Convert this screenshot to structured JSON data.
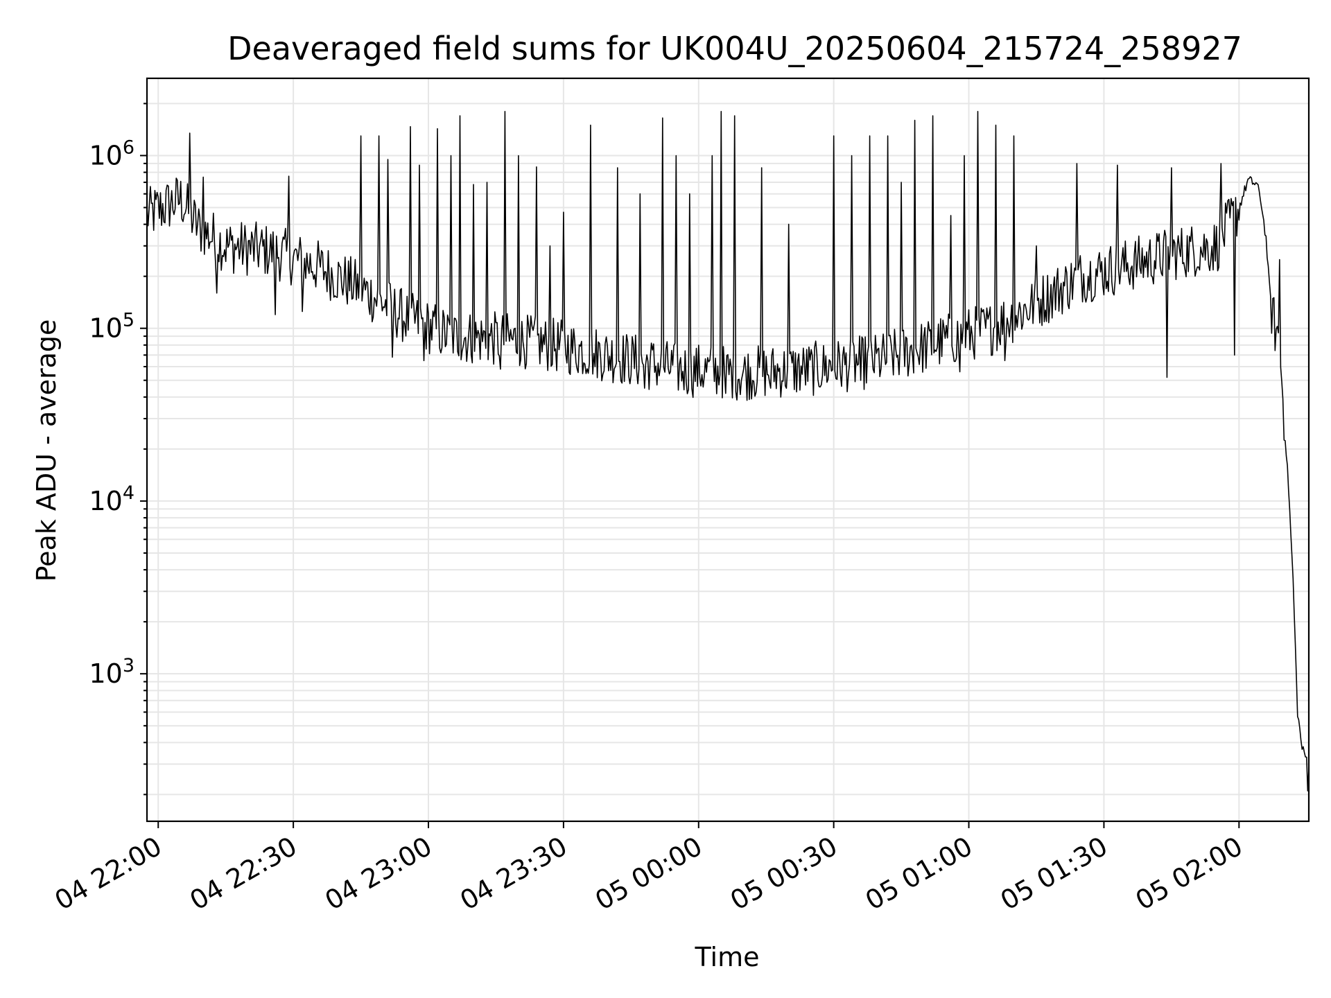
{
  "chart_data": {
    "type": "line",
    "title": "Deaveraged field sums for UK004U_20250604_215724_258927",
    "xlabel": "Time",
    "ylabel": "Peak ADU - average",
    "yscale": "log",
    "ylim": [
      140,
      2800000
    ],
    "xlim": [
      "2025-06-04 21:57:30",
      "2025-06-05 02:15:30"
    ],
    "grid": "major and minor",
    "x_ticks": [
      {
        "time": "2025-06-04 22:00",
        "label": "04 22:00"
      },
      {
        "time": "2025-06-04 22:30",
        "label": "04 22:30"
      },
      {
        "time": "2025-06-04 23:00",
        "label": "04 23:00"
      },
      {
        "time": "2025-06-04 23:30",
        "label": "04 23:30"
      },
      {
        "time": "2025-06-05 00:00",
        "label": "05 00:00"
      },
      {
        "time": "2025-06-05 00:30",
        "label": "05 00:30"
      },
      {
        "time": "2025-06-05 01:00",
        "label": "05 01:00"
      },
      {
        "time": "2025-06-05 01:30",
        "label": "05 01:30"
      },
      {
        "time": "2025-06-05 02:00",
        "label": "05 02:00"
      }
    ],
    "y_ticks": [
      {
        "value": 1000,
        "base": "10",
        "exp": "3"
      },
      {
        "value": 10000,
        "base": "10",
        "exp": "4"
      },
      {
        "value": 100000,
        "base": "10",
        "exp": "5"
      },
      {
        "value": 1000000,
        "base": "10",
        "exp": "6"
      }
    ],
    "series": [
      {
        "color": "#000000",
        "baseline": [
          [
            "2025-06-04 21:57:30",
            450000
          ],
          [
            "2025-06-04 22:05",
            560000
          ],
          [
            "2025-06-04 22:09",
            380000
          ],
          [
            "2025-06-04 22:15",
            300000
          ],
          [
            "2025-06-04 22:25",
            280000
          ],
          [
            "2025-06-04 22:35",
            230000
          ],
          [
            "2025-06-04 22:45",
            170000
          ],
          [
            "2025-06-04 22:55",
            115000
          ],
          [
            "2025-06-04 23:05",
            90000
          ],
          [
            "2025-06-04 23:20",
            85000
          ],
          [
            "2025-06-04 23:30",
            78000
          ],
          [
            "2025-06-04 23:40",
            70000
          ],
          [
            "2025-06-04 23:55",
            58000
          ],
          [
            "2025-06-05 00:10",
            55000
          ],
          [
            "2025-06-05 00:25",
            58000
          ],
          [
            "2025-06-05 00:40",
            65000
          ],
          [
            "2025-06-05 00:55",
            85000
          ],
          [
            "2025-06-05 01:05",
            100000
          ],
          [
            "2025-06-05 01:15",
            140000
          ],
          [
            "2025-06-05 01:25",
            200000
          ],
          [
            "2025-06-05 01:35",
            230000
          ],
          [
            "2025-06-05 01:45",
            270000
          ],
          [
            "2025-06-05 01:55",
            300000
          ],
          [
            "2025-06-05 02:00",
            500000
          ],
          [
            "2025-06-05 02:02",
            720000
          ],
          [
            "2025-06-05 02:04",
            680000
          ],
          [
            "2025-06-05 02:05",
            520000
          ],
          [
            "2025-06-05 02:06",
            330000
          ],
          [
            "2025-06-05 02:07",
            140000
          ],
          [
            "2025-06-05 02:08",
            100000
          ],
          [
            "2025-06-05 02:09",
            85000
          ],
          [
            "2025-06-05 02:10",
            30000
          ],
          [
            "2025-06-05 02:11",
            12000
          ],
          [
            "2025-06-05 02:12",
            3500
          ],
          [
            "2025-06-05 02:13",
            600
          ],
          [
            "2025-06-05 02:14",
            370
          ],
          [
            "2025-06-05 02:15:30",
            300
          ]
        ],
        "spikes": [
          [
            "2025-06-04 22:07",
            1350000
          ],
          [
            "2025-06-04 22:10",
            750000
          ],
          [
            "2025-06-04 22:29",
            760000
          ],
          [
            "2025-06-04 22:45",
            1300000
          ],
          [
            "2025-06-04 22:49",
            1300000
          ],
          [
            "2025-06-04 22:51",
            950000
          ],
          [
            "2025-06-04 22:56",
            1470000
          ],
          [
            "2025-06-04 22:58",
            880000
          ],
          [
            "2025-06-04 23:02",
            1430000
          ],
          [
            "2025-06-04 23:05",
            1000000
          ],
          [
            "2025-06-04 23:07",
            1700000
          ],
          [
            "2025-06-04 23:10",
            680000
          ],
          [
            "2025-06-04 23:13",
            700000
          ],
          [
            "2025-06-04 23:17",
            1800000
          ],
          [
            "2025-06-04 23:20",
            1000000
          ],
          [
            "2025-06-04 23:24",
            860000
          ],
          [
            "2025-06-04 23:27",
            300000
          ],
          [
            "2025-06-04 23:30",
            470000
          ],
          [
            "2025-06-04 23:36",
            1500000
          ],
          [
            "2025-06-04 23:42",
            850000
          ],
          [
            "2025-06-04 23:47",
            600000
          ],
          [
            "2025-06-04 23:52",
            1650000
          ],
          [
            "2025-06-04 23:55",
            1000000
          ],
          [
            "2025-06-04 23:58",
            600000
          ],
          [
            "2025-06-05 00:03",
            1000000
          ],
          [
            "2025-06-05 00:05",
            1800000
          ],
          [
            "2025-06-05 00:08",
            1700000
          ],
          [
            "2025-06-05 00:14",
            850000
          ],
          [
            "2025-06-05 00:20",
            400000
          ],
          [
            "2025-06-05 00:30",
            1300000
          ],
          [
            "2025-06-05 00:34",
            1000000
          ],
          [
            "2025-06-05 00:38",
            1300000
          ],
          [
            "2025-06-05 00:42",
            1300000
          ],
          [
            "2025-06-05 00:45",
            700000
          ],
          [
            "2025-06-05 00:48",
            1600000
          ],
          [
            "2025-06-05 00:52",
            1700000
          ],
          [
            "2025-06-05 00:56",
            450000
          ],
          [
            "2025-06-05 00:59",
            1000000
          ],
          [
            "2025-06-05 01:02",
            1800000
          ],
          [
            "2025-06-05 01:06",
            1500000
          ],
          [
            "2025-06-05 01:10",
            1300000
          ],
          [
            "2025-06-05 01:15",
            300000
          ],
          [
            "2025-06-05 01:24",
            900000
          ],
          [
            "2025-06-05 01:33",
            880000
          ],
          [
            "2025-06-05 01:45",
            850000
          ],
          [
            "2025-06-05 01:56",
            900000
          ],
          [
            "2025-06-05 02:09",
            250000
          ]
        ],
        "dips": [
          [
            "2025-06-04 22:13",
            160000
          ],
          [
            "2025-06-04 22:26",
            120000
          ],
          [
            "2025-06-04 22:32",
            125000
          ],
          [
            "2025-06-04 22:52",
            68000
          ],
          [
            "2025-06-04 22:59",
            65000
          ],
          [
            "2025-06-04 23:16",
            58000
          ],
          [
            "2025-06-04 23:37",
            60000
          ],
          [
            "2025-06-04 23:48",
            45000
          ],
          [
            "2025-06-05 00:06",
            42000
          ],
          [
            "2025-06-05 00:16",
            45000
          ],
          [
            "2025-06-05 00:36",
            50000
          ],
          [
            "2025-06-05 00:58",
            56000
          ],
          [
            "2025-06-05 01:08",
            65000
          ],
          [
            "2025-06-05 01:44",
            52000
          ],
          [
            "2025-06-05 01:59",
            70000
          ],
          [
            "2025-06-05 02:15:10",
            210
          ]
        ]
      }
    ]
  }
}
